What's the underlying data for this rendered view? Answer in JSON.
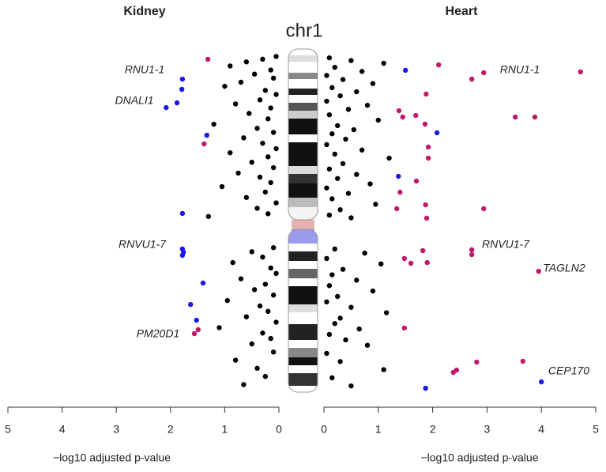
{
  "chromosome": "chr1",
  "chart_data": [
    {
      "type": "scatter",
      "title": "Kidney",
      "x_label": "−log10 adjusted p-value",
      "xlim": [
        5,
        0
      ],
      "xticks": [
        5,
        4,
        3,
        2,
        1,
        0
      ],
      "ylim": [
        0,
        249
      ],
      "series": [
        {
          "color": "#000000",
          "x": [
            0.05,
            0.3,
            0.6,
            0.9,
            0.15,
            0.45,
            0.1,
            0.7,
            1.0,
            0.25,
            0.05,
            0.35,
            0.8,
            0.15,
            0.55,
            0.2,
            1.2,
            0.4,
            0.1,
            0.65,
            0.3,
            0.05,
            0.9,
            0.2,
            0.5,
            0.1,
            0.75,
            0.35,
            0.15,
            1.05,
            0.25,
            0.6,
            0.05,
            0.4,
            0.2,
            1.3,
            0.1,
            0.5,
            0.3,
            0.85,
            0.15,
            0.05,
            0.7,
            0.25,
            0.45,
            0.1,
            0.95,
            0.35,
            0.2,
            0.6,
            0.05,
            1.1,
            0.3,
            0.15,
            0.5,
            0.1,
            0.8,
            0.4,
            0.25,
            0.65
          ],
          "y": [
            2,
            4,
            6,
            9,
            12,
            15,
            18,
            21,
            24,
            27,
            30,
            34,
            37,
            40,
            44,
            48,
            52,
            55,
            58,
            62,
            66,
            70,
            73,
            76,
            80,
            84,
            88,
            91,
            95,
            98,
            102,
            106,
            110,
            114,
            118,
            120,
            143,
            146,
            150,
            154,
            158,
            162,
            166,
            170,
            174,
            178,
            182,
            186,
            190,
            194,
            198,
            202,
            206,
            210,
            214,
            220,
            226,
            232,
            238,
            244
          ]
        },
        {
          "color": "#1a1ae6",
          "x": [
            1.78,
            1.79,
            1.88,
            2.08,
            1.33,
            1.78,
            1.78,
            1.76,
            1.78,
            1.4,
            1.63,
            1.52
          ],
          "y": [
            18.7,
            26.2,
            36.2,
            39.7,
            60.1,
            117.8,
            144.0,
            146.4,
            148.7,
            169.1,
            184.9,
            196.5
          ]
        },
        {
          "color": "#c0186a",
          "x": [
            1.31,
            1.38,
            1.49,
            1.56
          ],
          "y": [
            4.1,
            66.5,
            203.5,
            206.4
          ]
        }
      ],
      "annotations": [
        "RNU1-1",
        "DNALI1",
        "RNVU1-7",
        "PM20D1"
      ]
    },
    {
      "type": "scatter",
      "title": "Heart",
      "x_label": "−log10 adjusted p-value",
      "xlim": [
        0,
        5
      ],
      "xticks": [
        0,
        1,
        2,
        3,
        4,
        5
      ],
      "ylim": [
        0,
        249
      ],
      "series": [
        {
          "color": "#000000",
          "x": [
            0.1,
            0.5,
            1.1,
            0.2,
            0.7,
            0.05,
            0.35,
            0.9,
            0.15,
            0.6,
            0.3,
            0.05,
            0.8,
            0.45,
            0.1,
            1.0,
            0.25,
            0.55,
            0.15,
            0.4,
            0.05,
            0.7,
            0.2,
            1.2,
            0.35,
            0.1,
            0.6,
            0.25,
            0.85,
            0.05,
            0.45,
            0.15,
            0.95,
            0.3,
            0.1,
            0.5,
            0.2,
            0.75,
            0.05,
            1.05,
            0.35,
            0.15,
            0.6,
            0.1,
            0.9,
            0.25,
            0.05,
            0.5,
            1.15,
            0.3,
            0.2,
            0.65,
            0.1,
            0.4,
            0.8,
            0.05,
            0.3,
            1.1,
            0.15,
            0.5
          ],
          "y": [
            3,
            5,
            7,
            10,
            13,
            16,
            19,
            22,
            25,
            28,
            31,
            35,
            38,
            41,
            45,
            49,
            53,
            56,
            59,
            63,
            67,
            71,
            74,
            77,
            81,
            85,
            89,
            92,
            96,
            99,
            103,
            107,
            111,
            115,
            119,
            121,
            144,
            147,
            151,
            155,
            159,
            163,
            167,
            171,
            175,
            179,
            183,
            187,
            191,
            195,
            199,
            203,
            207,
            211,
            215,
            221,
            227,
            233,
            239,
            245
          ]
        },
        {
          "color": "#1a1ae6",
          "x": [
            1.5,
            2.08,
            1.37,
            4.0,
            1.87
          ],
          "y": [
            12.2,
            58.3,
            90.4,
            242.0,
            246.7
          ]
        },
        {
          "color": "#c0186a",
          "x": [
            2.11,
            2.94,
            2.72,
            4.72,
            1.88,
            1.38,
            1.45,
            1.69,
            1.86,
            3.52,
            3.88,
            1.92,
            1.92,
            1.7,
            1.4,
            1.87,
            1.34,
            2.94,
            1.89,
            1.82,
            2.72,
            2.72,
            1.48,
            1.6,
            1.9,
            3.95,
            1.48,
            2.81,
            3.66,
            2.44,
            2.38
          ],
          "y": [
            8.2,
            14.0,
            18.7,
            13.4,
            29.7,
            42.0,
            46.7,
            45.5,
            51.9,
            46.7,
            46.7,
            68.8,
            77.0,
            93.9,
            102.1,
            111.4,
            114.3,
            114.3,
            121.3,
            145.2,
            144.6,
            148.1,
            151.0,
            154.5,
            154.0,
            160.4,
            202.3,
            227.4,
            226.8,
            233.3,
            235.0
          ]
        }
      ],
      "annotations": [
        "RNU1-1",
        "RNVU1-7",
        "TAGLN2",
        "CEP170"
      ]
    }
  ]
}
